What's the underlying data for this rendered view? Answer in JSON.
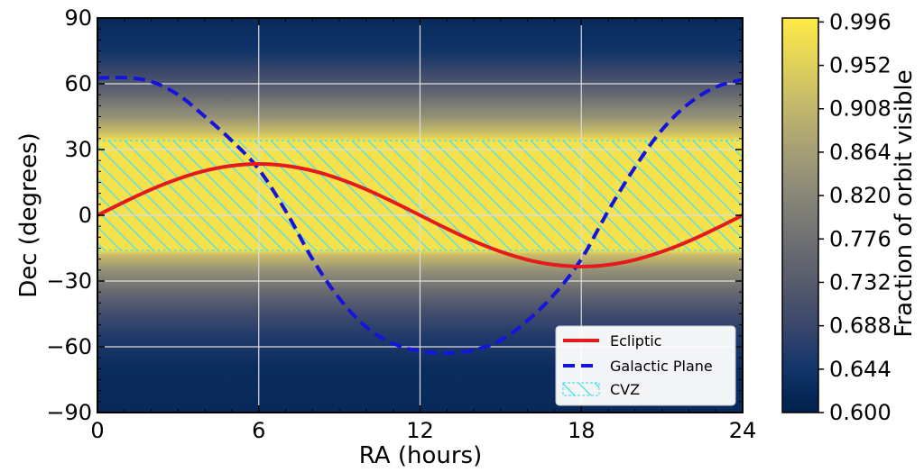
{
  "chart_data": {
    "type": "line",
    "xlabel": "RA (hours)",
    "ylabel": "Dec (degrees)",
    "xlim": [
      0,
      24
    ],
    "ylim": [
      -90,
      90
    ],
    "xticks": [
      0,
      6,
      12,
      18,
      24
    ],
    "yticks": [
      -90,
      -60,
      -30,
      0,
      30,
      60,
      90
    ],
    "ytick_labels": [
      "−90",
      "−60",
      "−30",
      "0",
      "30",
      "60",
      "90"
    ],
    "grid": true,
    "legend_position": "bottom-right",
    "series": [
      {
        "name": "Ecliptic",
        "style": "solid",
        "color": "#e41a1c",
        "x": [
          0,
          1,
          2,
          3,
          4,
          5,
          6,
          7,
          8,
          9,
          10,
          11,
          12,
          13,
          14,
          15,
          16,
          17,
          18,
          19,
          20,
          21,
          22,
          23,
          24
        ],
        "y": [
          0,
          6.1,
          11.8,
          16.6,
          20.3,
          22.6,
          23.4,
          22.6,
          20.3,
          16.6,
          11.8,
          6.1,
          0,
          -6.1,
          -11.8,
          -16.6,
          -20.3,
          -22.6,
          -23.4,
          -22.6,
          -20.3,
          -16.6,
          -11.8,
          -6.1,
          0
        ]
      },
      {
        "name": "Galactic Plane",
        "style": "dashed",
        "color": "#1414dc",
        "x": [
          0,
          1,
          2,
          3,
          4,
          5,
          6,
          7,
          8,
          9,
          10,
          11,
          12,
          13,
          14,
          15,
          16,
          17,
          18,
          19,
          20,
          21,
          22,
          23,
          24
        ],
        "y": [
          62.6,
          62.8,
          61.0,
          55.0,
          45.0,
          34.0,
          21.0,
          2.0,
          -20.0,
          -38.0,
          -51.0,
          -58.5,
          -62.0,
          -62.9,
          -61.5,
          -57.0,
          -48.0,
          -36.0,
          -20.0,
          2.0,
          22.0,
          39.0,
          51.0,
          58.5,
          62.0
        ]
      }
    ],
    "region": {
      "name": "CVZ",
      "dec_range": [
        -16,
        34
      ],
      "hatch_color": "#55e0e8"
    },
    "colorbar": {
      "label": "Fraction of orbit visible",
      "range": [
        0.6,
        1.0
      ],
      "ticks": [
        "0.600",
        "0.644",
        "0.688",
        "0.732",
        "0.776",
        "0.820",
        "0.864",
        "0.908",
        "0.952",
        "0.996"
      ],
      "tick_values": [
        0.6,
        0.644,
        0.688,
        0.732,
        0.776,
        0.82,
        0.864,
        0.908,
        0.952,
        0.996
      ],
      "colormap": [
        "#00204c",
        "#12356b",
        "#3a476b",
        "#575c6d",
        "#707173",
        "#8a8878",
        "#a69f75",
        "#c3b86b",
        "#e2d35a",
        "#ffe945"
      ]
    },
    "background_profile": {
      "dec": [
        -90,
        -70,
        -55,
        -45,
        -35,
        -25,
        -18,
        -16,
        34,
        37,
        45,
        55,
        65,
        75,
        90
      ],
      "fraction": [
        0.62,
        0.625,
        0.66,
        0.7,
        0.76,
        0.84,
        0.92,
        0.985,
        0.985,
        0.93,
        0.84,
        0.76,
        0.69,
        0.64,
        0.62
      ]
    }
  }
}
